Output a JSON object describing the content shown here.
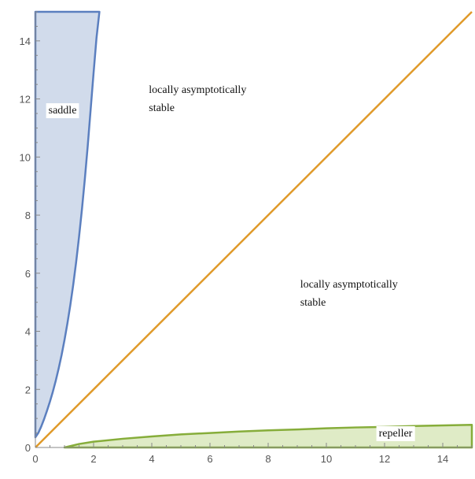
{
  "chart_data": {
    "type": "area",
    "title": "",
    "xlabel": "",
    "ylabel": "",
    "xlim": [
      0,
      15
    ],
    "ylim": [
      0,
      15
    ],
    "xticks": [
      0,
      2,
      4,
      6,
      8,
      10,
      12,
      14
    ],
    "yticks": [
      0,
      2,
      4,
      6,
      8,
      10,
      12,
      14
    ],
    "grid": false,
    "colors": {
      "saddle_stroke": "#5b7fbf",
      "saddle_fill": "#c9d5e8",
      "diagonal": "#e09a2a",
      "repeller_stroke": "#86ad3a",
      "repeller_fill": "#dbe9c0",
      "axis": "#888888"
    },
    "series": [
      {
        "kind": "region",
        "boundary": [
          [
            0.0,
            0.35
          ],
          [
            0.1,
            0.5
          ],
          [
            0.2,
            0.72
          ],
          [
            0.3,
            0.98
          ],
          [
            0.4,
            1.27
          ],
          [
            0.5,
            1.58
          ],
          [
            0.6,
            1.92
          ],
          [
            0.7,
            2.3
          ],
          [
            0.8,
            2.72
          ],
          [
            0.9,
            3.18
          ],
          [
            1.0,
            3.7
          ],
          [
            1.1,
            4.27
          ],
          [
            1.2,
            4.9
          ],
          [
            1.3,
            5.6
          ],
          [
            1.4,
            6.38
          ],
          [
            1.5,
            7.25
          ],
          [
            1.6,
            8.2
          ],
          [
            1.7,
            9.25
          ],
          [
            1.8,
            10.4
          ],
          [
            1.9,
            11.65
          ],
          [
            2.0,
            12.9
          ],
          [
            2.1,
            14.1
          ],
          [
            2.2,
            15.0
          ],
          [
            0.0,
            15.0
          ]
        ]
      },
      {
        "kind": "line",
        "points": [
          [
            0,
            0
          ],
          [
            15,
            15
          ]
        ]
      },
      {
        "kind": "region",
        "boundary": [
          [
            1.0,
            0.0
          ],
          [
            1.5,
            0.12
          ],
          [
            2.0,
            0.2
          ],
          [
            3.0,
            0.3
          ],
          [
            4.0,
            0.38
          ],
          [
            5.0,
            0.45
          ],
          [
            6.0,
            0.5
          ],
          [
            7.0,
            0.55
          ],
          [
            8.0,
            0.59
          ],
          [
            9.0,
            0.62
          ],
          [
            10.0,
            0.66
          ],
          [
            11.0,
            0.69
          ],
          [
            12.0,
            0.71
          ],
          [
            13.0,
            0.74
          ],
          [
            14.0,
            0.76
          ],
          [
            15.0,
            0.78
          ],
          [
            15.0,
            0.0
          ]
        ]
      }
    ],
    "annotations": [
      {
        "lines": [
          "saddle"
        ],
        "x": 0.45,
        "y": 11.5,
        "boxed": true
      },
      {
        "lines": [
          "locally asymptotically",
          "stable"
        ],
        "x": 3.9,
        "y": 12.2,
        "boxed": false
      },
      {
        "lines": [
          "locally asymptotically",
          "stable"
        ],
        "x": 9.1,
        "y": 5.5,
        "boxed": false
      },
      {
        "lines": [
          "repeller"
        ],
        "x": 11.8,
        "y": 0.38,
        "boxed": true
      }
    ]
  }
}
